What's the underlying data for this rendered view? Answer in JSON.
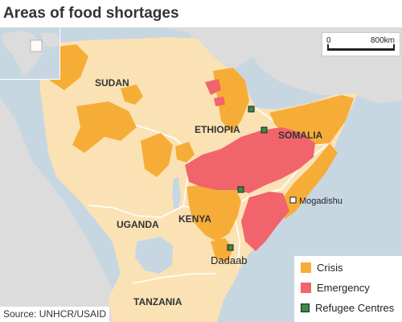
{
  "title": "Areas of food shortages",
  "scale": {
    "min_label": "0",
    "max_label": "800km"
  },
  "countries": {
    "sudan": "SUDAN",
    "ethiopia": "ETHIOPIA",
    "somalia": "SOMALIA",
    "uganda": "UGANDA",
    "kenya": "KENYA",
    "tanzania": "TANZANIA"
  },
  "places": {
    "mogadishu": "Mogadishu",
    "dadaab": "Dadaab"
  },
  "legend": [
    {
      "label": "Crisis",
      "color": "#f6ad38"
    },
    {
      "label": "Emergency",
      "color": "#f1646b"
    },
    {
      "label": "Refugee Centres",
      "color": "#3a8a48"
    }
  ],
  "source": "Source: UNHCR/USAID",
  "colors": {
    "water": "#c7d7e2",
    "land_other": "#dcdcdc",
    "region_land": "#fbe2b5",
    "crisis": "#f6ad38",
    "emergency": "#f1646b",
    "refugee": "#3a8a48"
  }
}
